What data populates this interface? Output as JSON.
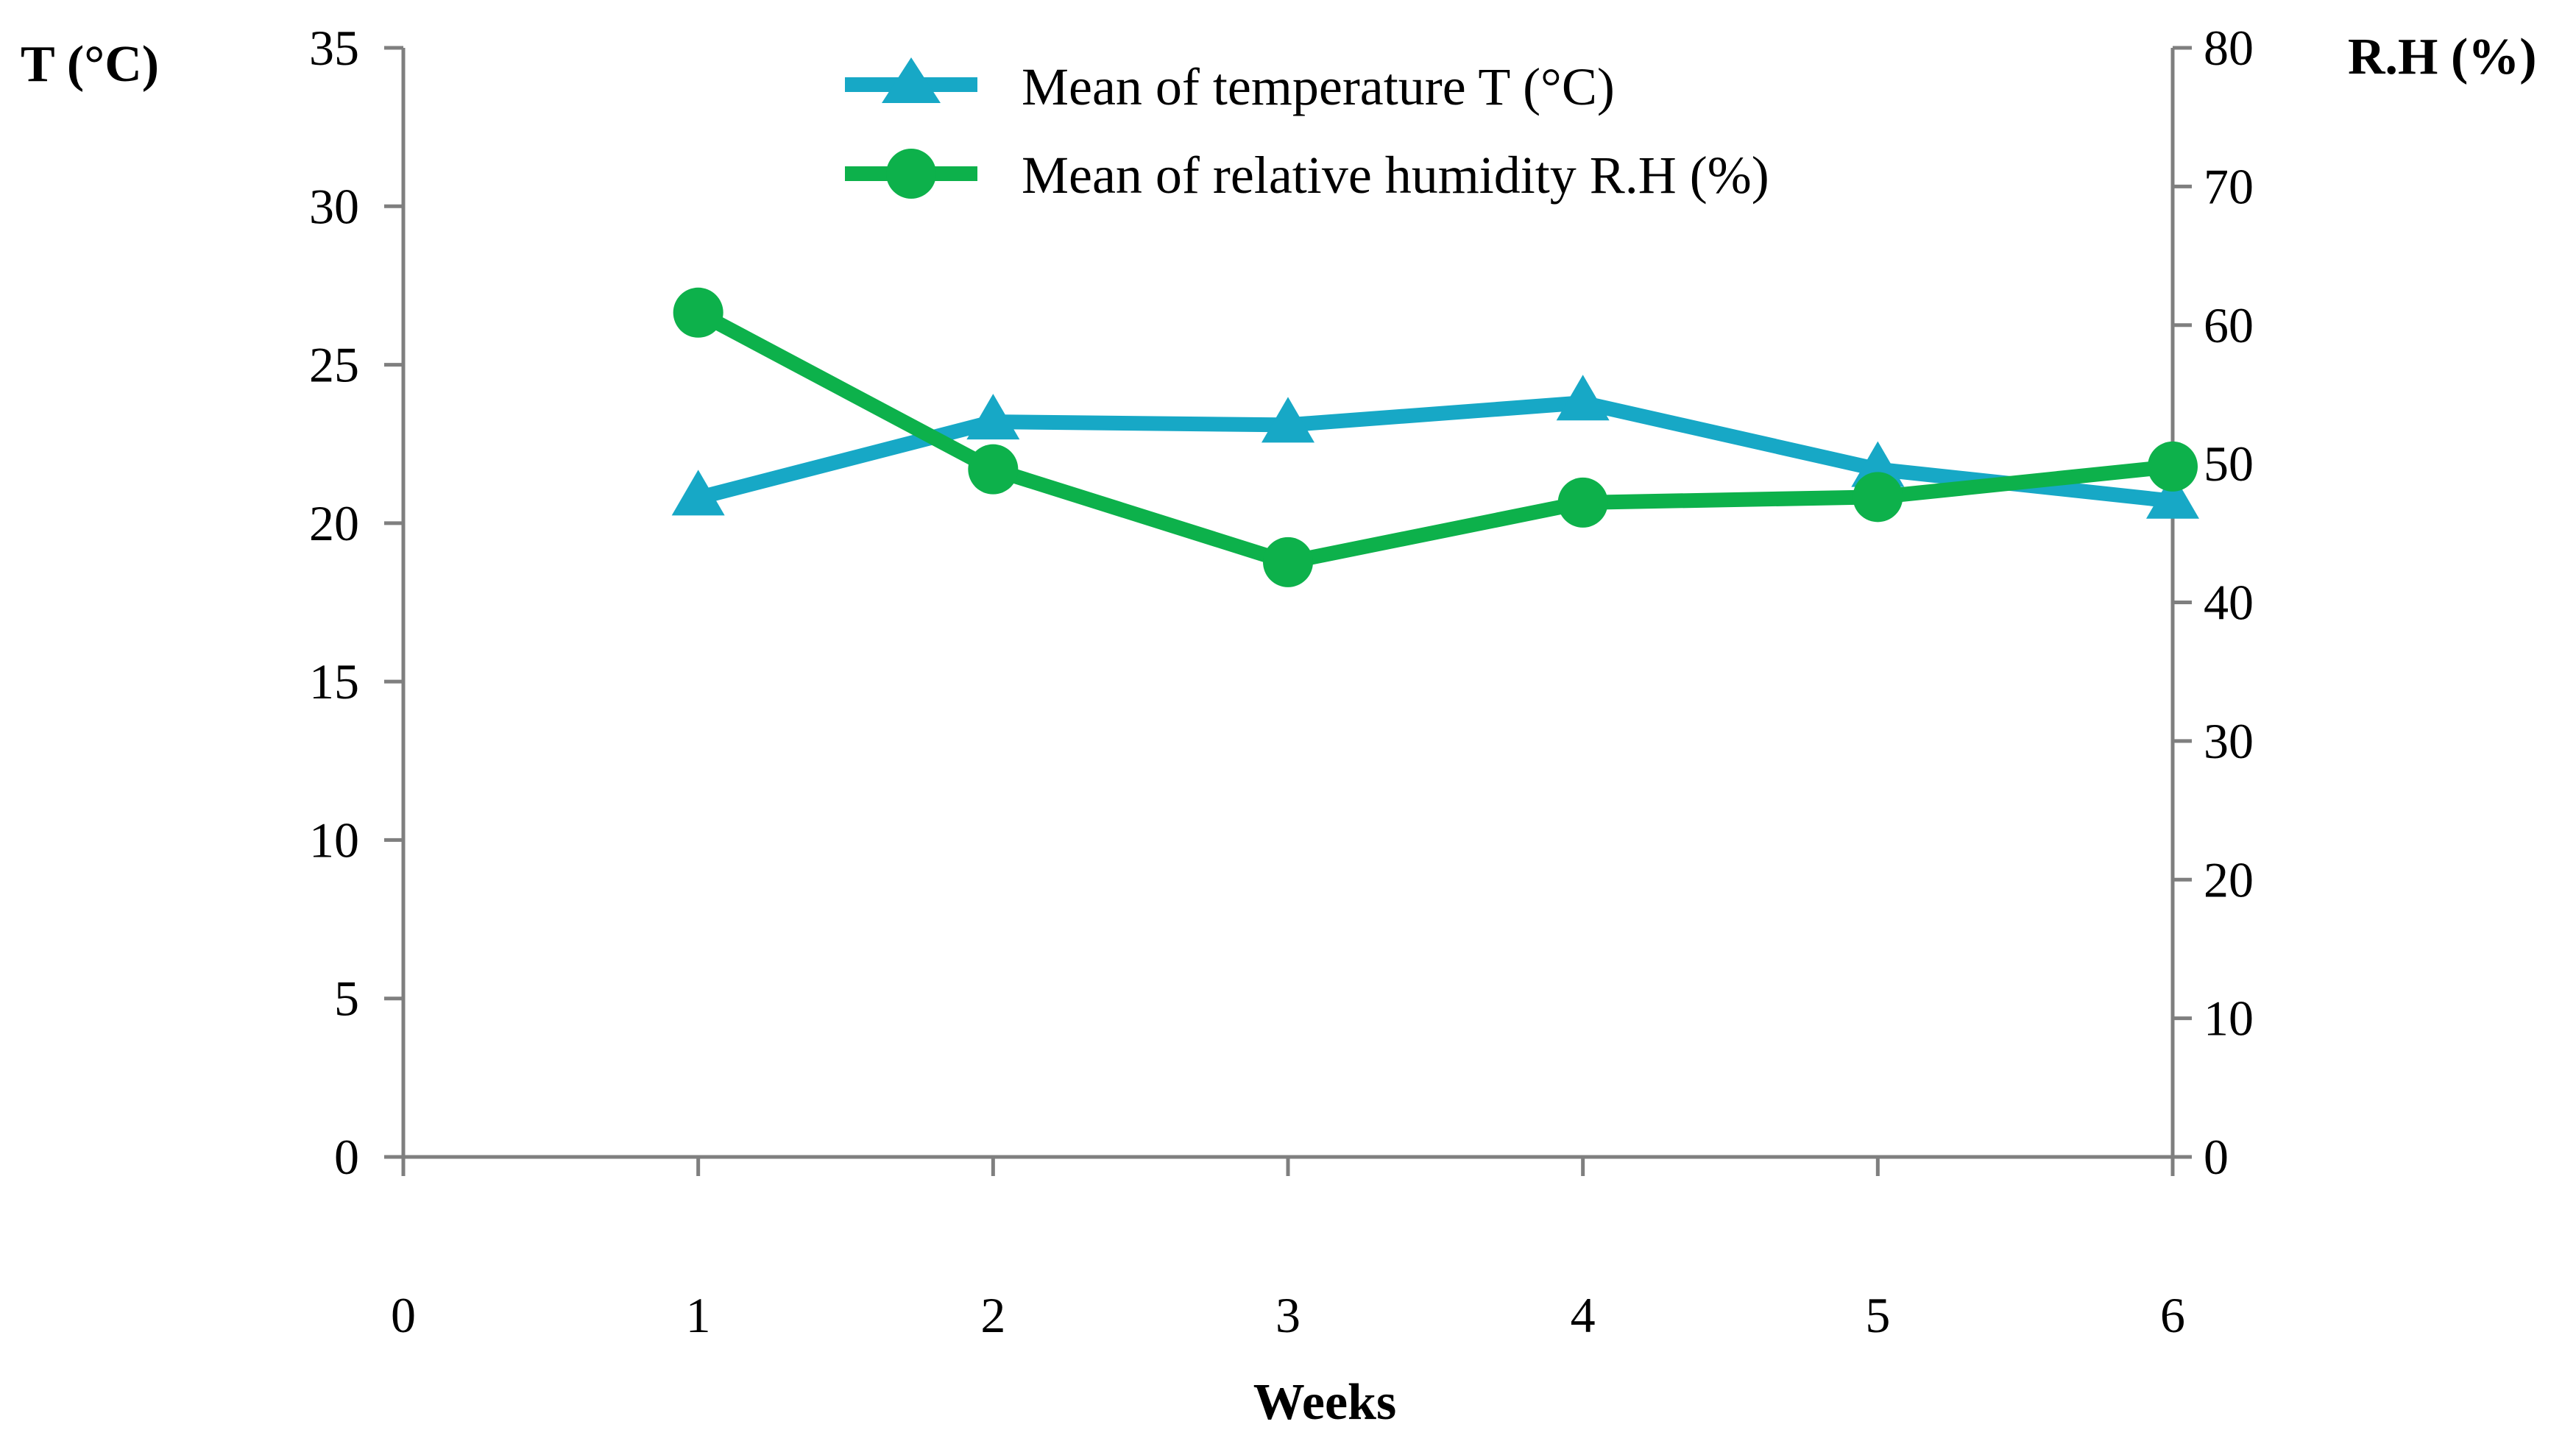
{
  "chart_data": {
    "type": "line",
    "x": [
      1,
      2,
      3,
      4,
      5,
      6
    ],
    "xticks": [
      "0",
      "1",
      "2",
      "3",
      "4",
      "5",
      "6"
    ],
    "xlabel": "Weeks",
    "xlim": [
      0,
      6
    ],
    "y_left": {
      "label": "T (°C)",
      "ylim": [
        0,
        35
      ],
      "ticks": [
        "0",
        "5",
        "10",
        "15",
        "20",
        "25",
        "30",
        "35"
      ]
    },
    "y_right": {
      "label": "R.H (%)",
      "ylim": [
        0,
        80
      ],
      "ticks": [
        "0",
        "10",
        "20",
        "30",
        "40",
        "50",
        "60",
        "70",
        "80"
      ]
    },
    "series": [
      {
        "name": "Mean of temperature T (°C)",
        "axis": "left",
        "marker": "triangle",
        "color": "#17A8C6",
        "values": [
          20.8,
          23.2,
          23.1,
          23.8,
          21.7,
          20.7
        ]
      },
      {
        "name": "Mean of relative humidity R.H (%)",
        "axis": "right",
        "marker": "circle",
        "color": "#0DB14B",
        "values": [
          60.9,
          49.6,
          42.9,
          47.2,
          47.6,
          49.8
        ]
      }
    ],
    "legend_position": "top-center"
  }
}
